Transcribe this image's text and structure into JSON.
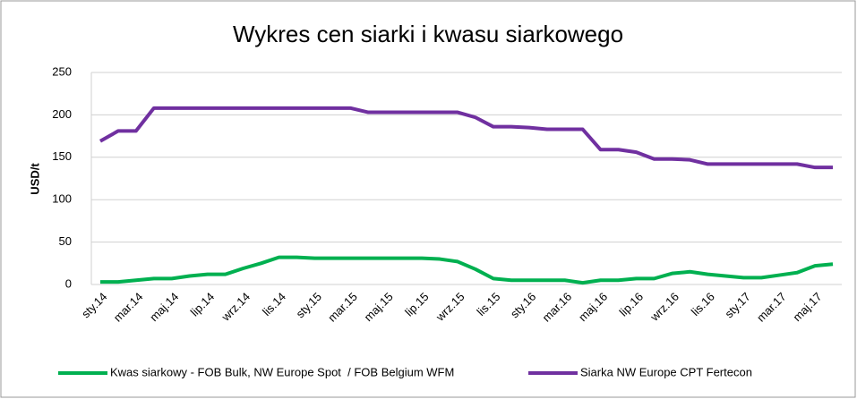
{
  "chart_data": {
    "type": "line",
    "title": "Wykres cen siarki i kwasu siarkowego",
    "y_label": "USD/t",
    "categories": [
      "sty.14",
      null,
      "mar.14",
      null,
      "maj.14",
      null,
      "lip.14",
      null,
      "wrz.14",
      null,
      "lis.14",
      null,
      "sty.15",
      null,
      "mar.15",
      null,
      "maj.15",
      null,
      "lip.15",
      null,
      "wrz.15",
      null,
      "lis.15",
      null,
      "sty.16",
      null,
      "mar.16",
      null,
      "maj.16",
      null,
      "lip.16",
      null,
      "wrz.16",
      null,
      "lis.16",
      null,
      "sty.17",
      null,
      "mar.17",
      null,
      "maj.17",
      null
    ],
    "series": [
      {
        "name": "Kwas siarkowy - FOB Bulk, NW Europe Spot  / FOB Belgium WFM",
        "color": "#00b050",
        "values": [
          3,
          3,
          5,
          7,
          7,
          10,
          12,
          12,
          19,
          25,
          32,
          32,
          31,
          31,
          31,
          31,
          31,
          31,
          31,
          30,
          27,
          18,
          7,
          5,
          5,
          5,
          5,
          2,
          5,
          5,
          7,
          7,
          13,
          15,
          12,
          10,
          8,
          8,
          11,
          14,
          22,
          24
        ]
      },
      {
        "name": "Siarka NW Europe CPT Fertecon",
        "color": "#7030a0",
        "values": [
          169,
          181,
          181,
          208,
          208,
          208,
          208,
          208,
          208,
          208,
          208,
          208,
          208,
          208,
          208,
          203,
          203,
          203,
          203,
          203,
          203,
          197,
          186,
          186,
          185,
          183,
          183,
          183,
          159,
          159,
          156,
          148,
          148,
          147,
          142,
          142,
          142,
          142,
          142,
          142,
          138,
          138
        ]
      }
    ],
    "ylim": [
      0,
      250
    ],
    "yticks": [
      0,
      50,
      100,
      150,
      200,
      250
    ],
    "grid": true,
    "legend": "bottom"
  }
}
